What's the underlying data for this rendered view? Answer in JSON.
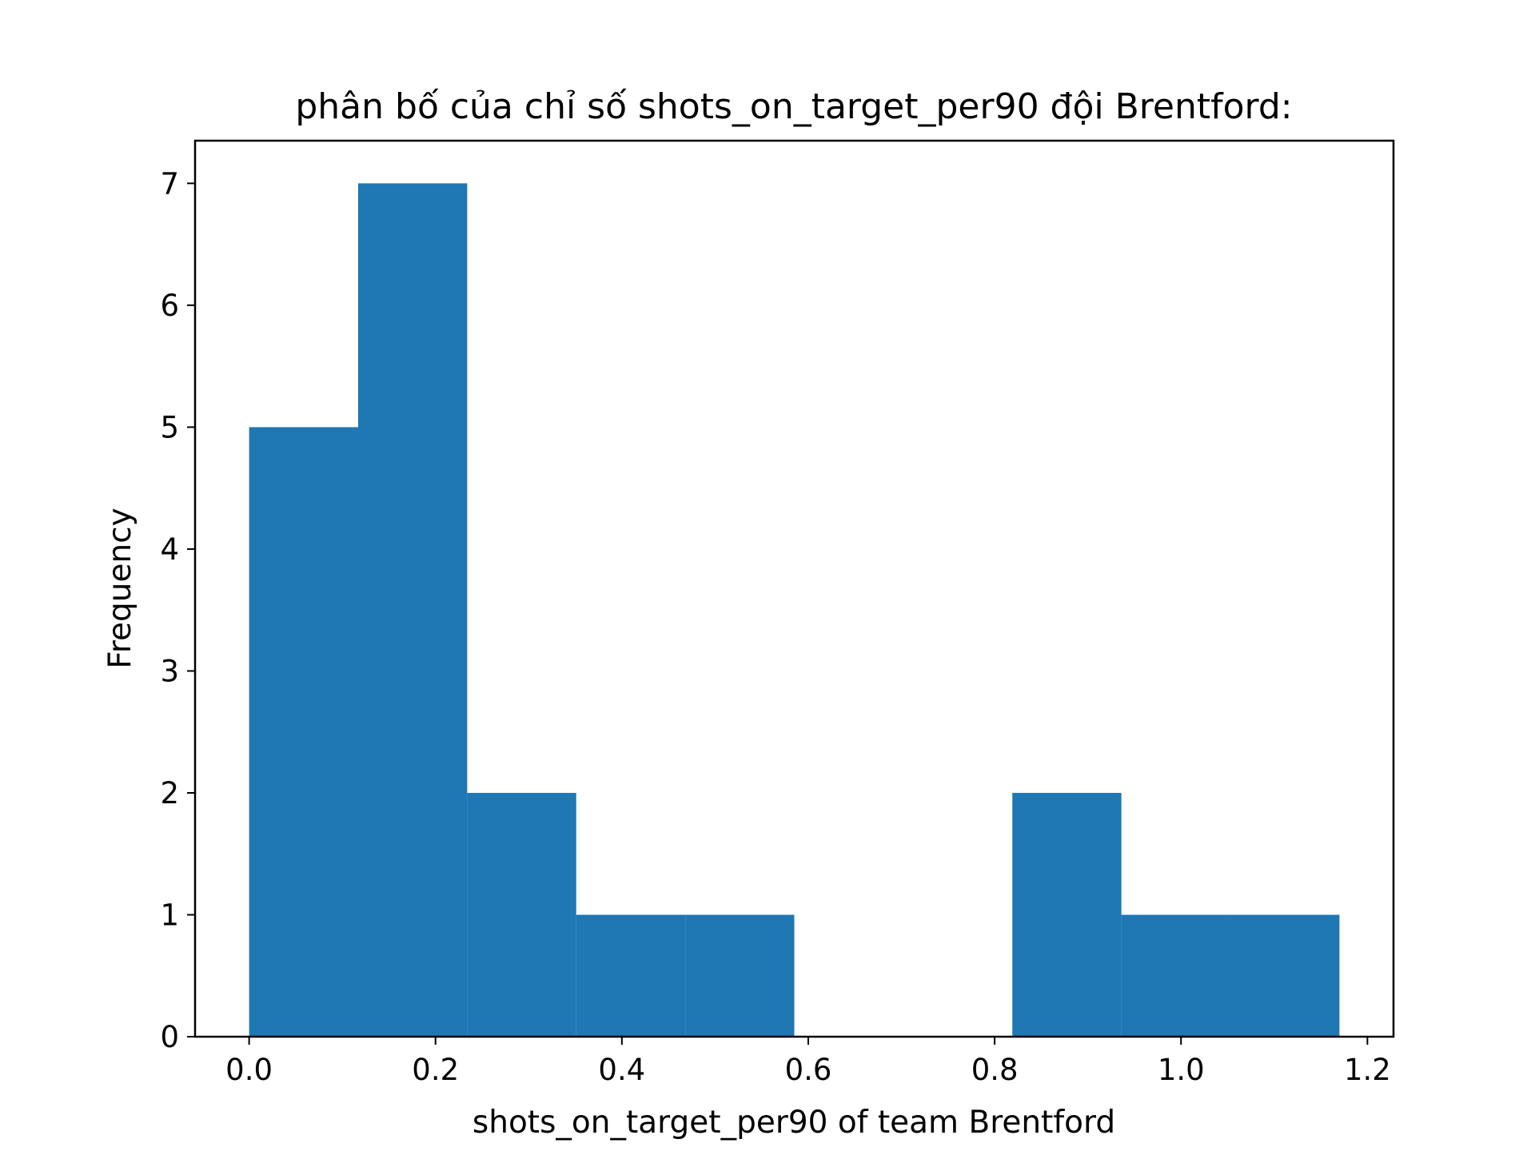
{
  "chart_data": {
    "type": "histogram",
    "title": "phân bố của chỉ số shots_on_target_per90 đội Brentford:",
    "xlabel": "shots_on_target_per90 of team Brentford",
    "ylabel": "Frequency",
    "xlim": [
      -0.058,
      1.228
    ],
    "ylim": [
      0,
      7.35
    ],
    "x_ticks": [
      0.0,
      0.2,
      0.4,
      0.6,
      0.8,
      1.0,
      1.2
    ],
    "x_tick_labels": [
      "0.0",
      "0.2",
      "0.4",
      "0.6",
      "0.8",
      "1.0",
      "1.2"
    ],
    "y_ticks": [
      0,
      1,
      2,
      3,
      4,
      5,
      6,
      7
    ],
    "y_tick_labels": [
      "0",
      "1",
      "2",
      "3",
      "4",
      "5",
      "6",
      "7"
    ],
    "bins": [
      {
        "x0": 0.0,
        "x1": 0.117,
        "count": 5
      },
      {
        "x0": 0.117,
        "x1": 0.234,
        "count": 7
      },
      {
        "x0": 0.234,
        "x1": 0.351,
        "count": 2
      },
      {
        "x0": 0.351,
        "x1": 0.468,
        "count": 1
      },
      {
        "x0": 0.468,
        "x1": 0.585,
        "count": 1
      },
      {
        "x0": 0.585,
        "x1": 0.702,
        "count": 0
      },
      {
        "x0": 0.702,
        "x1": 0.819,
        "count": 0
      },
      {
        "x0": 0.819,
        "x1": 0.936,
        "count": 2
      },
      {
        "x0": 0.936,
        "x1": 1.053,
        "count": 1
      },
      {
        "x0": 1.053,
        "x1": 1.17,
        "count": 1
      }
    ],
    "bar_color": "#1f77b4",
    "grid": false,
    "legend": "none"
  }
}
